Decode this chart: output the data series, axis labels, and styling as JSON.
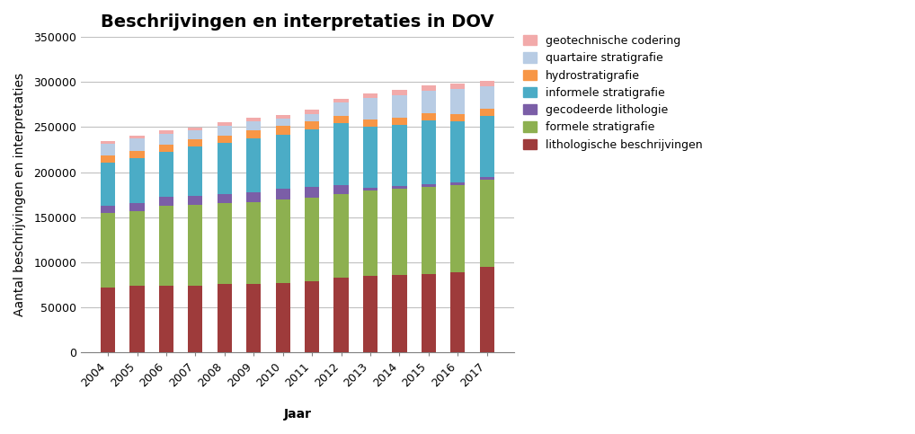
{
  "years": [
    2004,
    2005,
    2006,
    2007,
    2008,
    2009,
    2010,
    2011,
    2012,
    2013,
    2014,
    2015,
    2016,
    2017
  ],
  "title": "Beschrijvingen en interpretaties in DOV",
  "xlabel": "Jaar",
  "ylabel": "Aantal beschrijvingen en interpretaties",
  "ylim": [
    0,
    350000
  ],
  "yticks": [
    0,
    50000,
    100000,
    150000,
    200000,
    250000,
    300000,
    350000
  ],
  "series": {
    "lithologische beschrijvingen": {
      "color": "#9E3B3B",
      "values": [
        72000,
        74000,
        74000,
        74000,
        76000,
        76000,
        77000,
        79000,
        83000,
        85000,
        86000,
        87000,
        89000,
        95000
      ]
    },
    "formele stratigrafie": {
      "color": "#8DB050",
      "values": [
        83000,
        83000,
        89000,
        90000,
        90000,
        91000,
        93000,
        93000,
        93000,
        95000,
        96000,
        97000,
        97000,
        97000
      ]
    },
    "gecodeerde lithologie": {
      "color": "#7B5EA7",
      "values": [
        8000,
        9000,
        10000,
        10000,
        10000,
        11000,
        12000,
        12000,
        10000,
        3000,
        3000,
        3000,
        3000,
        3000
      ]
    },
    "informele stratigrafie": {
      "color": "#4BACC6",
      "values": [
        48000,
        50000,
        50000,
        55000,
        57000,
        60000,
        60000,
        63000,
        68000,
        67000,
        67000,
        70000,
        67000,
        67000
      ]
    },
    "hydrostratigrafie": {
      "color": "#F79646",
      "values": [
        8000,
        8000,
        8000,
        8000,
        8000,
        8000,
        9000,
        9000,
        8000,
        8000,
        8000,
        8000,
        8000,
        8000
      ]
    },
    "quartaire stratigrafie": {
      "color": "#B8CCE4",
      "values": [
        13000,
        14000,
        12000,
        9000,
        10000,
        10000,
        8000,
        8000,
        15000,
        24000,
        25000,
        25000,
        28000,
        25000
      ]
    },
    "geotechnische codering": {
      "color": "#F2AAAA",
      "values": [
        3000,
        3000,
        3000,
        3000,
        4000,
        4000,
        4000,
        5000,
        4000,
        5000,
        6000,
        6000,
        6000,
        6000
      ]
    }
  },
  "legend_order": [
    "geotechnische codering",
    "quartaire stratigrafie",
    "hydrostratigrafie",
    "informele stratigrafie",
    "gecodeerde lithologie",
    "formele stratigrafie",
    "lithologische beschrijvingen"
  ],
  "stack_order": [
    "lithologische beschrijvingen",
    "formele stratigrafie",
    "gecodeerde lithologie",
    "informele stratigrafie",
    "hydrostratigrafie",
    "quartaire stratigrafie",
    "geotechnische codering"
  ],
  "background_color": "#FFFFFF",
  "plot_bg_color": "#FFFFFF",
  "grid_color": "#C0C0C0",
  "title_fontsize": 14,
  "axis_label_fontsize": 10,
  "tick_fontsize": 9,
  "legend_fontsize": 9,
  "bar_width": 0.5
}
